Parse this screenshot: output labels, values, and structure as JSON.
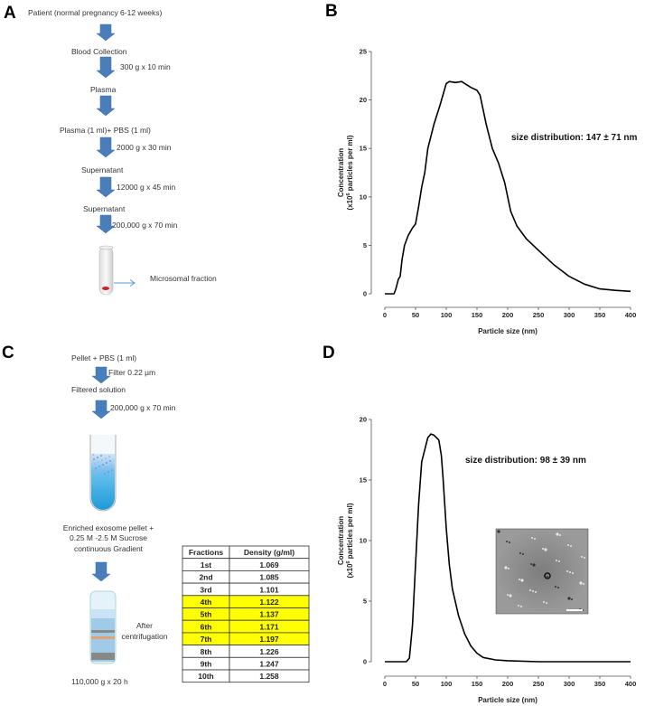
{
  "panel_labels": [
    "A",
    "B",
    "C",
    "D"
  ],
  "arrow_color": "#4a7ebb",
  "highlight_color": "#ffff00",
  "panel_a": {
    "steps": [
      "Patient (normal pregnancy 6-12 weeks)",
      "Blood Collection",
      "Plasma",
      "Plasma (1 ml)+ PBS (1 ml)",
      "Supernatant",
      "Supernatant"
    ],
    "conditions": [
      "300 g x 10 min",
      "2000 g x 30 min",
      "12000 g x 45 min",
      "200,000 g x 70 min"
    ],
    "tube_label": "Microsomal fraction"
  },
  "panel_c": {
    "steps": [
      "Pellet + PBS (1 ml)",
      "Filtered solution"
    ],
    "conditions": [
      "Filter 0.22 µm",
      "200,000 g x 70 min"
    ],
    "gradient_text": [
      "Enriched exosome pellet  +",
      "0.25 M -2.5 M Sucrose",
      "continuous  Gradient"
    ],
    "after_text": [
      "After",
      "centrifugation"
    ],
    "spin": "110,000 g x 20 h",
    "table": {
      "headers": [
        "Fractions",
        "Density (g/ml)"
      ],
      "rows": [
        {
          "fraction": "1st",
          "density": "1.069",
          "highlight": false
        },
        {
          "fraction": "2nd",
          "density": "1.085",
          "highlight": false
        },
        {
          "fraction": "3rd",
          "density": "1.101",
          "highlight": false
        },
        {
          "fraction": "4th",
          "density": "1.122",
          "highlight": true
        },
        {
          "fraction": "5th",
          "density": "1.137",
          "highlight": true
        },
        {
          "fraction": "6th",
          "density": "1.171",
          "highlight": true
        },
        {
          "fraction": "7th",
          "density": "1.197",
          "highlight": true
        },
        {
          "fraction": "8th",
          "density": "1.226",
          "highlight": false
        },
        {
          "fraction": "9th",
          "density": "1.247",
          "highlight": false
        },
        {
          "fraction": "10th",
          "density": "1.258",
          "highlight": false
        }
      ]
    }
  },
  "chart_data": [
    {
      "type": "line",
      "panel": "B",
      "xlabel": "Particle size (nm)",
      "ylabel": {
        "line1": "Concentration",
        "line2_pre": "(x10",
        "line2_sup": "6",
        "line2_post": " particles per ml)"
      },
      "annotation": "size distribution: 147 ± 71 nm",
      "xlim": [
        0,
        400
      ],
      "ylim": [
        0,
        25
      ],
      "xticks": [
        "0",
        "50",
        "100",
        "150",
        "200",
        "250",
        "300",
        "350",
        "400"
      ],
      "yticks": [
        "0",
        "5",
        "10",
        "15",
        "20",
        "25"
      ],
      "grid": false,
      "x": [
        0,
        15,
        18,
        22,
        25,
        28,
        32,
        38,
        45,
        50,
        55,
        60,
        65,
        70,
        80,
        90,
        100,
        105,
        115,
        125,
        140,
        150,
        155,
        165,
        175,
        185,
        195,
        205,
        215,
        230,
        250,
        275,
        300,
        325,
        350,
        375,
        400
      ],
      "y": [
        0,
        0,
        0.5,
        1.5,
        1.8,
        3.5,
        5,
        6,
        6.8,
        7.2,
        9,
        11,
        12.5,
        15,
        17.5,
        19.5,
        21.7,
        21.9,
        21.8,
        21.9,
        21.3,
        21,
        20.5,
        17.5,
        15,
        13.5,
        11.5,
        8.5,
        7,
        5.7,
        4.5,
        3,
        1.8,
        1,
        0.5,
        0.35,
        0.25
      ]
    },
    {
      "type": "line",
      "panel": "D",
      "xlabel": "Particle size (nm)",
      "ylabel": {
        "line1": "Concentration",
        "line2_pre": "(x10",
        "line2_sup": "6",
        "line2_post": " particles per ml)"
      },
      "annotation": "size distribution: 98 ± 39 nm",
      "xlim": [
        0,
        400
      ],
      "ylim": [
        0,
        20
      ],
      "xticks": [
        "0",
        "50",
        "100",
        "150",
        "200",
        "250",
        "300",
        "350",
        "400"
      ],
      "yticks": [
        "0",
        "5",
        "10",
        "15",
        "20"
      ],
      "grid": false,
      "inset": "electron micrograph",
      "x": [
        0,
        35,
        40,
        45,
        50,
        55,
        60,
        70,
        75,
        80,
        88,
        92,
        95,
        100,
        105,
        110,
        120,
        130,
        140,
        150,
        160,
        180,
        200,
        250,
        400
      ],
      "y": [
        0,
        0,
        0.3,
        3,
        8,
        13,
        16.5,
        18.5,
        18.8,
        18.7,
        18.3,
        17,
        15,
        11,
        8,
        6,
        3.8,
        2.3,
        1.3,
        0.7,
        0.35,
        0.15,
        0.08,
        0,
        0
      ]
    }
  ]
}
